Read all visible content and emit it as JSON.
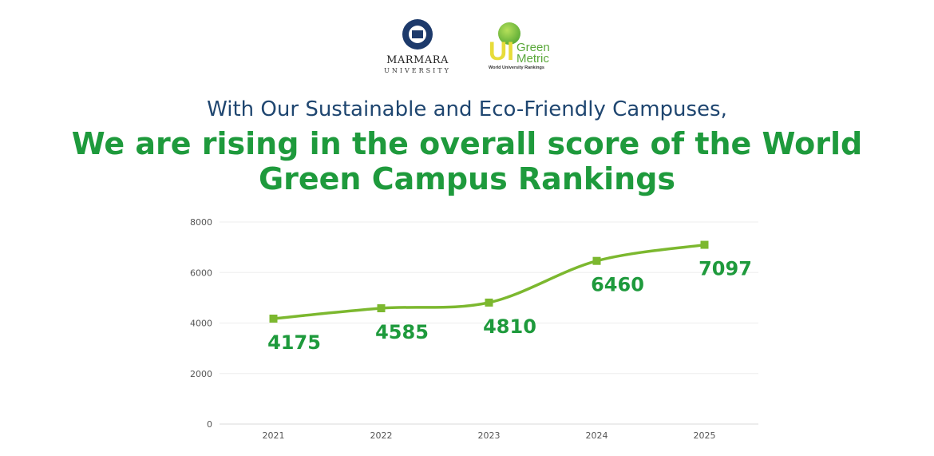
{
  "logos": {
    "marmara": {
      "name": "MARMARA",
      "sub": "UNIVERSITY"
    },
    "greenmetric": {
      "ui": "UI",
      "line1": "Green",
      "line2": "Metric",
      "tagline": "World University Rankings"
    }
  },
  "heading": {
    "line1": "With Our Sustainable and Eco-Friendly Campuses,",
    "line2a": "We are rising in the overall score of the World",
    "line2b": "Green Campus Rankings"
  },
  "chart_data": {
    "type": "line",
    "categories": [
      "2021",
      "2022",
      "2023",
      "2024",
      "2025"
    ],
    "values": [
      4175,
      4585,
      4810,
      6460,
      7097
    ],
    "data_labels": [
      "4175",
      "4585",
      "4810",
      "6460",
      "7097"
    ],
    "ylim": [
      0,
      8000
    ],
    "yticks": [
      "0",
      "2000",
      "4000",
      "6000",
      "8000"
    ],
    "grid": true,
    "smooth": true,
    "colors": {
      "line": "#7cb82f",
      "labels": "#1e9a3c",
      "grid": "#eeeeee"
    }
  }
}
